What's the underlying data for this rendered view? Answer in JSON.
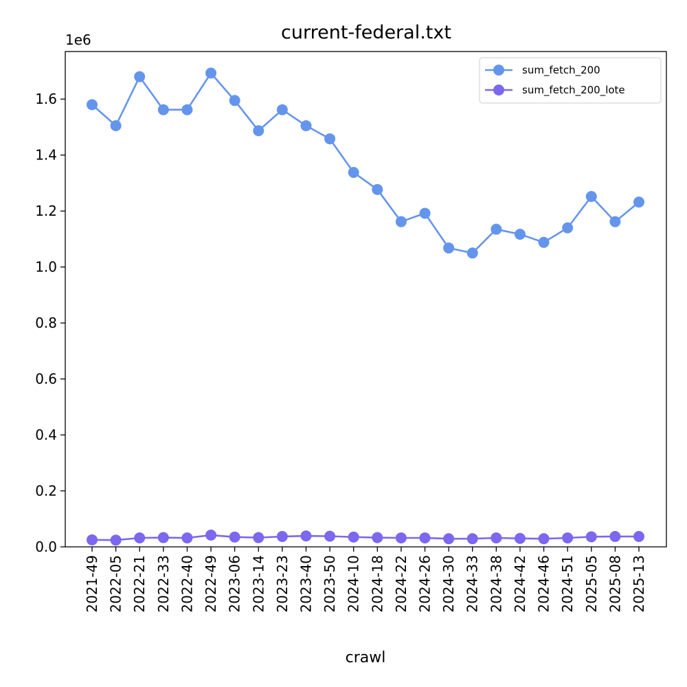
{
  "chart_data": {
    "type": "line",
    "title": "current-federal.txt",
    "xlabel": "crawl",
    "ylabel": "",
    "y_offset_label": "1e6",
    "categories": [
      "2021-49",
      "2022-05",
      "2022-21",
      "2022-33",
      "2022-40",
      "2022-49",
      "2023-06",
      "2023-14",
      "2023-23",
      "2023-40",
      "2023-50",
      "2024-10",
      "2024-18",
      "2024-22",
      "2024-26",
      "2024-30",
      "2024-33",
      "2024-38",
      "2024-42",
      "2024-46",
      "2024-51",
      "2025-05",
      "2025-08",
      "2025-13"
    ],
    "yticks": [
      "0.0",
      "0.2",
      "0.4",
      "0.6",
      "0.8",
      "1.0",
      "1.2",
      "1.4",
      "1.6"
    ],
    "ylim": [
      0,
      1.77
    ],
    "series": [
      {
        "name": "sum_fetch_200",
        "color": "#6495ED",
        "values": [
          1.58,
          1.505,
          1.68,
          1.562,
          1.562,
          1.693,
          1.595,
          1.487,
          1.562,
          1.505,
          1.458,
          1.338,
          1.277,
          1.162,
          1.192,
          1.068,
          1.05,
          1.135,
          1.117,
          1.088,
          1.14,
          1.252,
          1.162,
          1.232
        ]
      },
      {
        "name": "sum_fetch_200_lote",
        "color": "#7B68EE",
        "values": [
          0.025,
          0.024,
          0.032,
          0.033,
          0.032,
          0.042,
          0.035,
          0.033,
          0.037,
          0.039,
          0.038,
          0.035,
          0.033,
          0.032,
          0.032,
          0.029,
          0.029,
          0.032,
          0.03,
          0.029,
          0.032,
          0.036,
          0.037,
          0.037
        ]
      }
    ],
    "legend_position": "top-right",
    "grid": false
  }
}
